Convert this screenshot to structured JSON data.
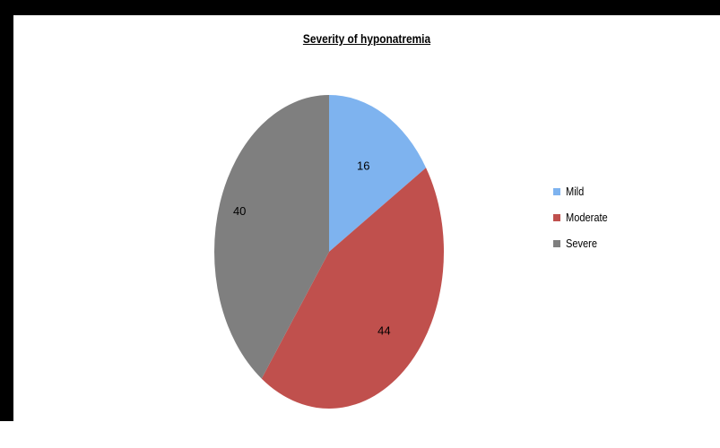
{
  "chart_data": {
    "type": "pie",
    "title": "Severity of hyponatremia",
    "categories": [
      "Mild",
      "Moderate",
      "Severe"
    ],
    "values": [
      16,
      44,
      40
    ],
    "data_labels": [
      "16",
      "44",
      "40"
    ],
    "colors": [
      "#7eb3ef",
      "#c0504d",
      "#7f7f7f"
    ],
    "start_angle_deg": 0,
    "direction": "clockwise",
    "legend_position": "right"
  }
}
